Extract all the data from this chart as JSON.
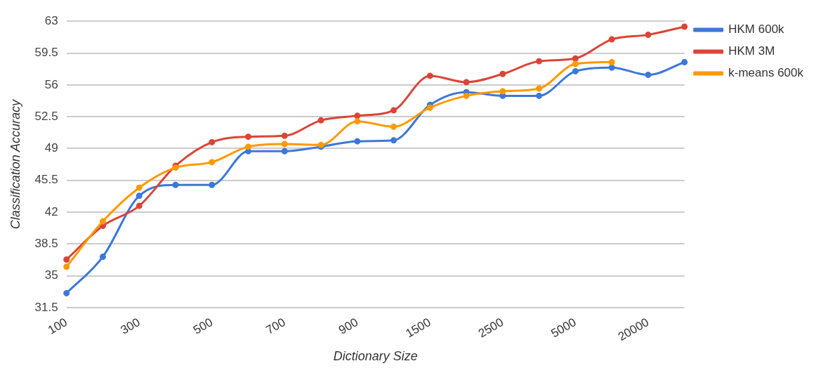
{
  "chart_data": {
    "type": "line",
    "xlabel": "Dictionary Size",
    "ylabel": "Classification Accuracy",
    "categories": [
      "100",
      null,
      "300",
      null,
      "500",
      null,
      "700",
      null,
      "900",
      null,
      "1500",
      null,
      "2500",
      null,
      "5000",
      null,
      "20000",
      null
    ],
    "series": [
      {
        "name": "HKM 600k",
        "color": "#3c78d8",
        "values": [
          33.1,
          37.1,
          43.8,
          45.0,
          45.0,
          48.7,
          48.7,
          49.2,
          49.8,
          49.9,
          53.8,
          55.2,
          54.8,
          54.8,
          57.5,
          57.9,
          57.1,
          58.5
        ]
      },
      {
        "name": "HKM 3M",
        "color": "#db4437",
        "values": [
          36.8,
          40.5,
          42.7,
          47.1,
          49.7,
          50.3,
          50.4,
          52.1,
          52.6,
          53.2,
          57.0,
          56.3,
          57.2,
          58.6,
          58.9,
          61.0,
          61.5,
          62.4
        ]
      },
      {
        "name": "k-means 600k",
        "color": "#ff9900",
        "values": [
          36.0,
          41.0,
          44.7,
          46.9,
          47.5,
          49.2,
          49.5,
          49.4,
          52.0,
          51.4,
          53.5,
          54.8,
          55.3,
          55.6,
          58.3,
          58.5,
          null,
          null
        ]
      }
    ],
    "ylim": [
      31.5,
      63
    ],
    "yticks": [
      31.5,
      35,
      38.5,
      42,
      45.5,
      49,
      52.5,
      56,
      59.5,
      63
    ],
    "grid": "y",
    "legend": "top right",
    "marker": "circle",
    "line_style": "solid"
  }
}
